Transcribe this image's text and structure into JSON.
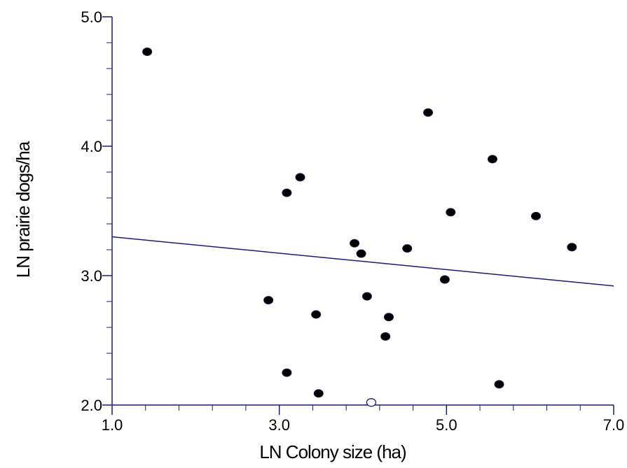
{
  "chart_data": {
    "type": "scatter",
    "xlabel": "LN Colony size (ha)",
    "ylabel": "LN prairie dogs/ha",
    "xlim": [
      1.0,
      7.0
    ],
    "ylim": [
      2.0,
      5.0
    ],
    "x_major_ticks": [
      1.0,
      3.0,
      5.0,
      7.0
    ],
    "x_tick_labels": [
      "1.0",
      "3.0",
      "5.0",
      "7.0"
    ],
    "x_minor_step": 0.4,
    "y_major_ticks": [
      2.0,
      3.0,
      4.0,
      5.0
    ],
    "y_tick_labels": [
      "2.0",
      "3.0",
      "4.0",
      "5.0"
    ],
    "y_minor_step": 0.2,
    "grid": false,
    "colors": {
      "axis": "#1a1a7a",
      "point": "#000000",
      "fit_line": "#1a1a7a"
    },
    "series": [
      {
        "marker": "filled-circle",
        "points": [
          {
            "x": 1.42,
            "y": 4.73
          },
          {
            "x": 4.78,
            "y": 4.26
          },
          {
            "x": 5.55,
            "y": 3.9
          },
          {
            "x": 3.25,
            "y": 3.76
          },
          {
            "x": 3.09,
            "y": 3.64
          },
          {
            "x": 5.05,
            "y": 3.49
          },
          {
            "x": 6.07,
            "y": 3.46
          },
          {
            "x": 3.9,
            "y": 3.25
          },
          {
            "x": 6.5,
            "y": 3.22
          },
          {
            "x": 4.53,
            "y": 3.21
          },
          {
            "x": 3.98,
            "y": 3.17
          },
          {
            "x": 4.98,
            "y": 2.97
          },
          {
            "x": 2.87,
            "y": 2.81
          },
          {
            "x": 4.05,
            "y": 2.84
          },
          {
            "x": 3.44,
            "y": 2.7
          },
          {
            "x": 4.31,
            "y": 2.68
          },
          {
            "x": 4.27,
            "y": 2.53
          },
          {
            "x": 3.09,
            "y": 2.25
          },
          {
            "x": 3.47,
            "y": 2.09
          },
          {
            "x": 5.63,
            "y": 2.16
          }
        ]
      },
      {
        "marker": "open-circle",
        "points": [
          {
            "x": 4.1,
            "y": 2.02
          }
        ]
      }
    ],
    "fit_line": {
      "x": [
        1.0,
        7.0
      ],
      "y": [
        3.3,
        2.92
      ]
    }
  }
}
